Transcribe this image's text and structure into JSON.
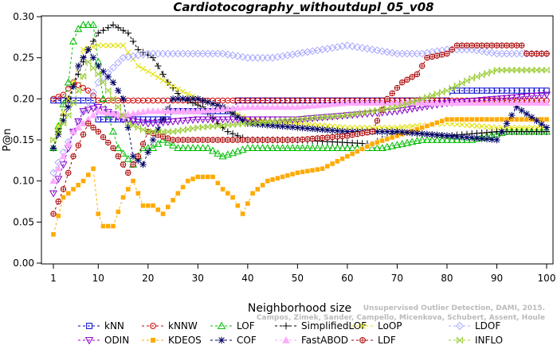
{
  "chart_data": {
    "type": "line",
    "title": "Cardiotocography_withoutdupl_05_v08",
    "xlabel": "Neighborhood size",
    "ylabel": "P@n",
    "xlim": [
      0,
      100
    ],
    "ylim": [
      0,
      0.3
    ],
    "x_ticks": [
      1,
      10,
      20,
      30,
      40,
      50,
      60,
      70,
      80,
      90,
      100
    ],
    "y_ticks": [
      "0.00",
      "0.05",
      "0.10",
      "0.15",
      "0.20",
      "0.25",
      "0.30"
    ],
    "grid": false,
    "legend_position": "bottom",
    "credit_lines": [
      "Unsupervised Outlier Detection, DAMI, 2015.",
      "Campos, Zimek, Sander, Campello, Micenkova, Schubert, Assent, Houle"
    ],
    "series": [
      {
        "name": "kNN",
        "color": "#0000cc",
        "marker": "square",
        "keypoints": [
          [
            1,
            0.198
          ],
          [
            9,
            0.198
          ],
          [
            10,
            0.175
          ],
          [
            24,
            0.175
          ],
          [
            25,
            0.185
          ],
          [
            37,
            0.185
          ],
          [
            38,
            0.198
          ],
          [
            80,
            0.198
          ],
          [
            81,
            0.21
          ],
          [
            100,
            0.21
          ]
        ]
      },
      {
        "name": "kNNW",
        "color": "#cc0000",
        "marker": "circle",
        "keypoints": [
          [
            1,
            0.2
          ],
          [
            3,
            0.205
          ],
          [
            5,
            0.22
          ],
          [
            8,
            0.21
          ],
          [
            10,
            0.198
          ],
          [
            100,
            0.198
          ]
        ]
      },
      {
        "name": "LOF",
        "color": "#00bb00",
        "marker": "triangle-up",
        "keypoints": [
          [
            1,
            0.14
          ],
          [
            4,
            0.22
          ],
          [
            5,
            0.27
          ],
          [
            6,
            0.285
          ],
          [
            7,
            0.29
          ],
          [
            9,
            0.29
          ],
          [
            11,
            0.2
          ],
          [
            14,
            0.14
          ],
          [
            17,
            0.12
          ],
          [
            19,
            0.14
          ],
          [
            21,
            0.14
          ],
          [
            23,
            0.15
          ],
          [
            26,
            0.14
          ],
          [
            32,
            0.14
          ],
          [
            35,
            0.13
          ],
          [
            40,
            0.14
          ],
          [
            50,
            0.14
          ],
          [
            67,
            0.14
          ],
          [
            75,
            0.15
          ],
          [
            85,
            0.15
          ],
          [
            92,
            0.16
          ],
          [
            100,
            0.16
          ]
        ]
      },
      {
        "name": "SimplifiedLOF",
        "color": "#000000",
        "marker": "plus",
        "keypoints": [
          [
            1,
            0.14
          ],
          [
            4,
            0.2
          ],
          [
            6,
            0.23
          ],
          [
            8,
            0.26
          ],
          [
            10,
            0.28
          ],
          [
            13,
            0.29
          ],
          [
            16,
            0.28
          ],
          [
            18,
            0.26
          ],
          [
            21,
            0.25
          ],
          [
            24,
            0.22
          ],
          [
            27,
            0.2
          ],
          [
            31,
            0.19
          ],
          [
            34,
            0.17
          ],
          [
            36,
            0.16
          ],
          [
            40,
            0.15
          ],
          [
            44,
            0.15
          ],
          [
            50,
            0.15
          ],
          [
            65,
            0.145
          ],
          [
            70,
            0.16
          ],
          [
            80,
            0.155
          ],
          [
            90,
            0.16
          ],
          [
            100,
            0.16
          ]
        ]
      },
      {
        "name": "LoOP",
        "color": "#e0e000",
        "marker": "x",
        "keypoints": [
          [
            1,
            0.15
          ],
          [
            4,
            0.2
          ],
          [
            7,
            0.26
          ],
          [
            10,
            0.265
          ],
          [
            15,
            0.265
          ],
          [
            18,
            0.24
          ],
          [
            21,
            0.23
          ],
          [
            25,
            0.215
          ],
          [
            30,
            0.2
          ],
          [
            35,
            0.19
          ],
          [
            40,
            0.175
          ],
          [
            50,
            0.17
          ],
          [
            60,
            0.165
          ],
          [
            70,
            0.165
          ],
          [
            80,
            0.17
          ],
          [
            90,
            0.165
          ],
          [
            100,
            0.165
          ]
        ]
      },
      {
        "name": "LDOF",
        "color": "#aaaaff",
        "marker": "diamond",
        "keypoints": [
          [
            1,
            0.11
          ],
          [
            5,
            0.16
          ],
          [
            10,
            0.22
          ],
          [
            15,
            0.25
          ],
          [
            20,
            0.255
          ],
          [
            25,
            0.255
          ],
          [
            30,
            0.255
          ],
          [
            35,
            0.255
          ],
          [
            40,
            0.25
          ],
          [
            45,
            0.25
          ],
          [
            50,
            0.255
          ],
          [
            55,
            0.26
          ],
          [
            60,
            0.265
          ],
          [
            65,
            0.26
          ],
          [
            70,
            0.255
          ],
          [
            75,
            0.255
          ],
          [
            80,
            0.26
          ],
          [
            85,
            0.26
          ],
          [
            90,
            0.255
          ],
          [
            95,
            0.255
          ],
          [
            100,
            0.255
          ]
        ]
      },
      {
        "name": "ODIN",
        "color": "#8800cc",
        "marker": "triangle-down",
        "keypoints": [
          [
            1,
            0.085
          ],
          [
            3,
            0.12
          ],
          [
            5,
            0.16
          ],
          [
            7,
            0.185
          ],
          [
            10,
            0.19
          ],
          [
            15,
            0.175
          ],
          [
            20,
            0.17
          ],
          [
            30,
            0.175
          ],
          [
            40,
            0.175
          ],
          [
            50,
            0.175
          ],
          [
            60,
            0.18
          ],
          [
            70,
            0.185
          ],
          [
            80,
            0.195
          ],
          [
            90,
            0.2
          ],
          [
            100,
            0.205
          ]
        ]
      },
      {
        "name": "KDEOS",
        "color": "#ffaa00",
        "marker": "square-filled",
        "keypoints": [
          [
            1,
            0.035
          ],
          [
            3,
            0.08
          ],
          [
            5,
            0.09
          ],
          [
            7,
            0.1
          ],
          [
            9,
            0.115
          ],
          [
            10,
            0.06
          ],
          [
            11,
            0.045
          ],
          [
            13,
            0.045
          ],
          [
            15,
            0.08
          ],
          [
            17,
            0.1
          ],
          [
            19,
            0.07
          ],
          [
            21,
            0.07
          ],
          [
            23,
            0.06
          ],
          [
            26,
            0.085
          ],
          [
            28,
            0.1
          ],
          [
            30,
            0.105
          ],
          [
            33,
            0.105
          ],
          [
            35,
            0.09
          ],
          [
            37,
            0.08
          ],
          [
            39,
            0.06
          ],
          [
            41,
            0.085
          ],
          [
            44,
            0.1
          ],
          [
            47,
            0.105
          ],
          [
            50,
            0.11
          ],
          [
            55,
            0.115
          ],
          [
            60,
            0.13
          ],
          [
            65,
            0.145
          ],
          [
            70,
            0.155
          ],
          [
            75,
            0.165
          ],
          [
            80,
            0.175
          ],
          [
            90,
            0.175
          ],
          [
            100,
            0.175
          ]
        ]
      },
      {
        "name": "COF",
        "color": "#000066",
        "marker": "star",
        "keypoints": [
          [
            1,
            0.14
          ],
          [
            4,
            0.19
          ],
          [
            6,
            0.24
          ],
          [
            8,
            0.26
          ],
          [
            10,
            0.24
          ],
          [
            13,
            0.22
          ],
          [
            15,
            0.2
          ],
          [
            17,
            0.13
          ],
          [
            19,
            0.12
          ],
          [
            21,
            0.15
          ],
          [
            25,
            0.2
          ],
          [
            30,
            0.2
          ],
          [
            35,
            0.19
          ],
          [
            40,
            0.17
          ],
          [
            50,
            0.165
          ],
          [
            60,
            0.16
          ],
          [
            70,
            0.16
          ],
          [
            80,
            0.155
          ],
          [
            90,
            0.15
          ],
          [
            94,
            0.19
          ],
          [
            100,
            0.165
          ]
        ]
      },
      {
        "name": "FastABOD",
        "color": "#ffaaff",
        "marker": "triangle-filled",
        "keypoints": [
          [
            1,
            0.1
          ],
          [
            5,
            0.16
          ],
          [
            10,
            0.185
          ],
          [
            15,
            0.18
          ],
          [
            20,
            0.185
          ],
          [
            30,
            0.185
          ],
          [
            40,
            0.19
          ],
          [
            50,
            0.19
          ],
          [
            60,
            0.195
          ],
          [
            70,
            0.195
          ],
          [
            80,
            0.195
          ],
          [
            90,
            0.195
          ],
          [
            100,
            0.195
          ]
        ]
      },
      {
        "name": "LDF",
        "color": "#aa0000",
        "marker": "circle-filled",
        "keypoints": [
          [
            1,
            0.06
          ],
          [
            3,
            0.09
          ],
          [
            5,
            0.13
          ],
          [
            8,
            0.17
          ],
          [
            10,
            0.16
          ],
          [
            13,
            0.14
          ],
          [
            16,
            0.11
          ],
          [
            18,
            0.13
          ],
          [
            20,
            0.16
          ],
          [
            25,
            0.15
          ],
          [
            30,
            0.15
          ],
          [
            40,
            0.15
          ],
          [
            50,
            0.15
          ],
          [
            60,
            0.155
          ],
          [
            65,
            0.16
          ],
          [
            68,
            0.2
          ],
          [
            71,
            0.22
          ],
          [
            74,
            0.23
          ],
          [
            76,
            0.25
          ],
          [
            80,
            0.255
          ],
          [
            82,
            0.265
          ],
          [
            95,
            0.265
          ],
          [
            96,
            0.255
          ],
          [
            100,
            0.255
          ]
        ]
      },
      {
        "name": "INFLO",
        "color": "#99cc33",
        "marker": "hourglass",
        "keypoints": [
          [
            1,
            0.15
          ],
          [
            4,
            0.18
          ],
          [
            6,
            0.21
          ],
          [
            8,
            0.245
          ],
          [
            10,
            0.23
          ],
          [
            13,
            0.2
          ],
          [
            16,
            0.17
          ],
          [
            20,
            0.16
          ],
          [
            25,
            0.16
          ],
          [
            30,
            0.165
          ],
          [
            40,
            0.17
          ],
          [
            50,
            0.175
          ],
          [
            60,
            0.18
          ],
          [
            70,
            0.19
          ],
          [
            80,
            0.21
          ],
          [
            85,
            0.225
          ],
          [
            90,
            0.235
          ],
          [
            100,
            0.235
          ]
        ]
      }
    ]
  }
}
